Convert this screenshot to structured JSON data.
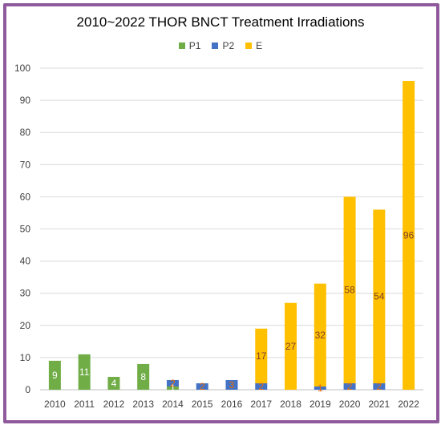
{
  "chart_data": {
    "type": "bar",
    "stacked": true,
    "title": "2010~2022 THOR BNCT Treatment Irradiations",
    "categories": [
      "2010",
      "2011",
      "2012",
      "2013",
      "2014",
      "2015",
      "2016",
      "2017",
      "2018",
      "2019",
      "2020",
      "2021",
      "2022"
    ],
    "series": [
      {
        "name": "P1",
        "color": "#70ad47",
        "values": [
          9,
          11,
          4,
          8,
          1,
          0,
          0,
          0,
          0,
          0,
          0,
          0,
          0
        ],
        "labels": [
          "9",
          "11",
          "4",
          "8",
          "1",
          "",
          "",
          "",
          "",
          "",
          "",
          "",
          ""
        ]
      },
      {
        "name": "P2",
        "color": "#4472c4",
        "values": [
          0,
          0,
          0,
          0,
          2,
          2,
          3,
          2,
          0,
          1,
          2,
          2,
          0
        ],
        "labels": [
          "",
          "",
          "",
          "",
          "2",
          "2",
          "3",
          "2",
          "",
          "1",
          "2",
          "2",
          ""
        ]
      },
      {
        "name": "E",
        "color": "#ffc000",
        "values": [
          0,
          0,
          0,
          0,
          0,
          0,
          0,
          17,
          27,
          32,
          58,
          54,
          96
        ],
        "labels": [
          "",
          "",
          "",
          "",
          "",
          "",
          "",
          "17",
          "27",
          "32",
          "58",
          "54",
          "96"
        ]
      }
    ],
    "ylim": [
      0,
      100
    ],
    "yticks": [
      0,
      10,
      20,
      30,
      40,
      50,
      60,
      70,
      80,
      90,
      100
    ],
    "grid": true,
    "legend_position": "top"
  }
}
